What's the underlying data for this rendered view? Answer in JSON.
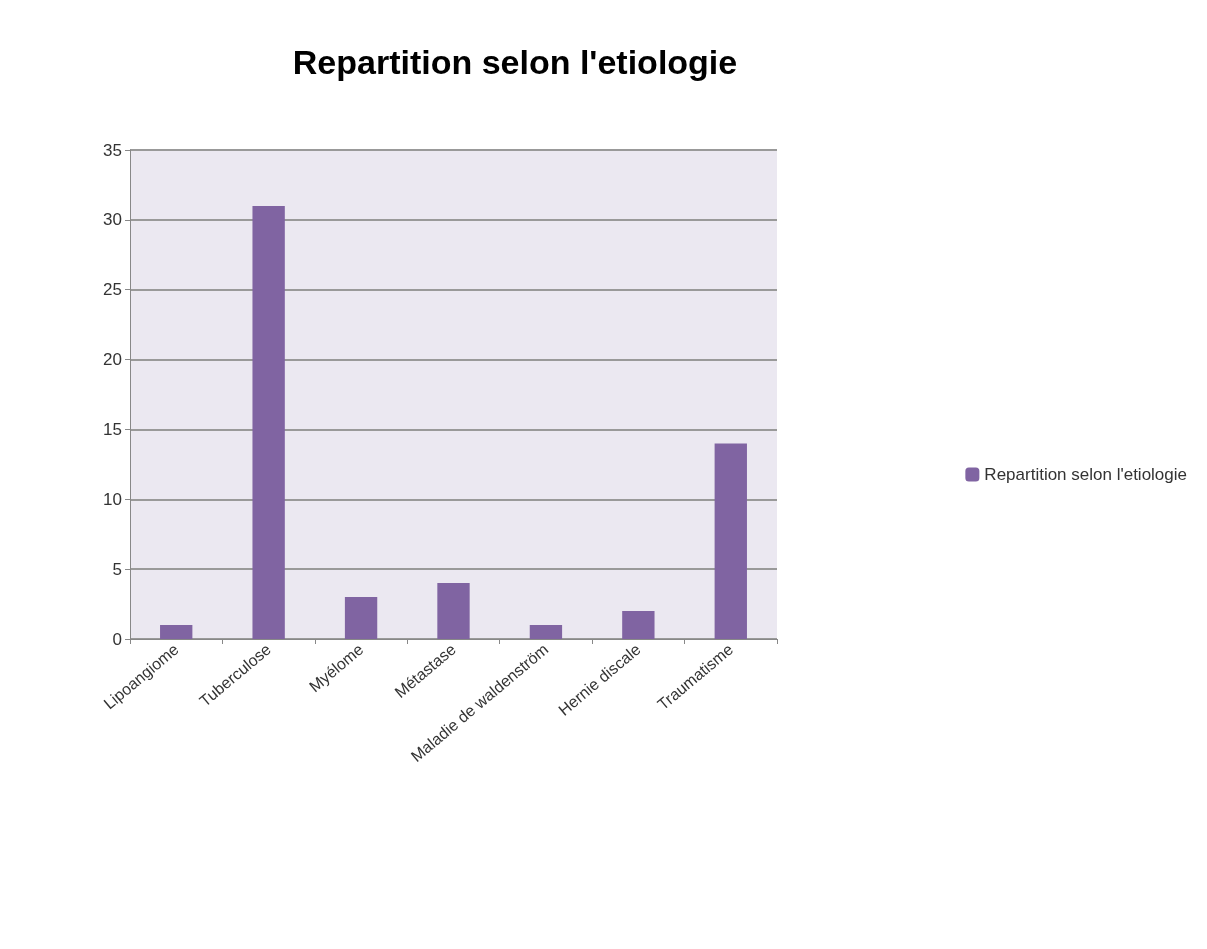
{
  "chart_data": {
    "type": "bar",
    "title": "Repartition selon l'etiologie",
    "categories": [
      "Lipoangiome",
      "Tuberculose",
      "Myélome",
      "Métastase",
      "Maladie de waldenström",
      "Hernie discale",
      "Traumatisme"
    ],
    "series": [
      {
        "name": "Repartition selon l'etiologie",
        "color": "#8064a2",
        "values": [
          1,
          31,
          3,
          4,
          1,
          2,
          14
        ]
      }
    ],
    "ylim": [
      0,
      35
    ],
    "yticks": [
      0,
      5,
      10,
      15,
      20,
      25,
      30,
      35
    ],
    "grid": "y",
    "legend": "right"
  }
}
